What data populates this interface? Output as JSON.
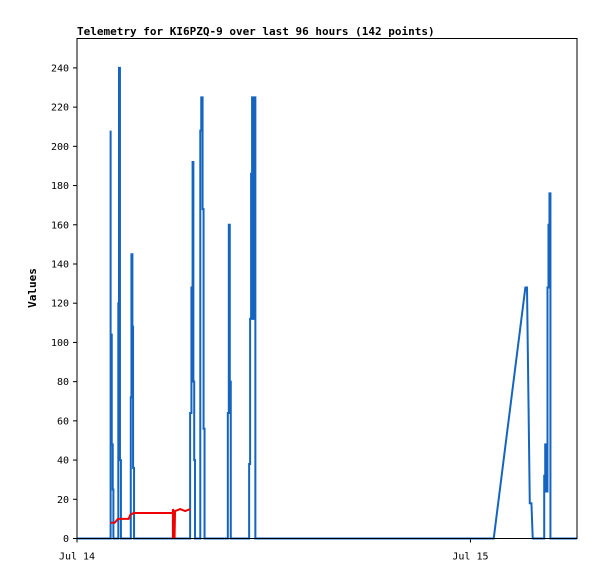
{
  "chart_data": {
    "type": "line",
    "title": "Telemetry for KI6PZQ-9 over last 96 hours (142 points)",
    "xlabel": "",
    "ylabel": "Values",
    "x_unit": "hours",
    "xlim": [
      0,
      30.5
    ],
    "ylim": [
      0,
      255
    ],
    "x_ticks": [
      {
        "x": 0,
        "label": "Jul 14"
      },
      {
        "x": 24,
        "label": "Jul 15"
      }
    ],
    "y_ticks": [
      0,
      20,
      40,
      60,
      80,
      100,
      120,
      140,
      160,
      180,
      200,
      220,
      240
    ],
    "grid": false,
    "legend": "none",
    "series": [
      {
        "color": "#1565c0",
        "points": [
          [
            0,
            0
          ],
          [
            2.05,
            0
          ],
          [
            2.05,
            208
          ],
          [
            2.05,
            104
          ],
          [
            2.12,
            104
          ],
          [
            2.12,
            48
          ],
          [
            2.18,
            48
          ],
          [
            2.18,
            25
          ],
          [
            2.22,
            25
          ],
          [
            2.22,
            0
          ],
          [
            2.52,
            0
          ],
          [
            2.52,
            120
          ],
          [
            2.56,
            120
          ],
          [
            2.56,
            240
          ],
          [
            2.62,
            240
          ],
          [
            2.62,
            40
          ],
          [
            2.68,
            40
          ],
          [
            2.68,
            0
          ],
          [
            3.28,
            0
          ],
          [
            3.28,
            72
          ],
          [
            3.32,
            72
          ],
          [
            3.32,
            145
          ],
          [
            3.38,
            145
          ],
          [
            3.38,
            108
          ],
          [
            3.42,
            108
          ],
          [
            3.42,
            36
          ],
          [
            3.48,
            36
          ],
          [
            3.48,
            0
          ],
          [
            6.9,
            0
          ],
          [
            6.9,
            64
          ],
          [
            6.98,
            64
          ],
          [
            6.98,
            128
          ],
          [
            7.05,
            128
          ],
          [
            7.05,
            192
          ],
          [
            7.1,
            192
          ],
          [
            7.1,
            80
          ],
          [
            7.15,
            80
          ],
          [
            7.15,
            40
          ],
          [
            7.2,
            40
          ],
          [
            7.2,
            0
          ],
          [
            7.52,
            0
          ],
          [
            7.52,
            208
          ],
          [
            7.58,
            208
          ],
          [
            7.58,
            225
          ],
          [
            7.66,
            225
          ],
          [
            7.66,
            168
          ],
          [
            7.72,
            168
          ],
          [
            7.72,
            56
          ],
          [
            7.78,
            56
          ],
          [
            7.78,
            0
          ],
          [
            9.2,
            0
          ],
          [
            9.2,
            64
          ],
          [
            9.26,
            64
          ],
          [
            9.26,
            160
          ],
          [
            9.32,
            160
          ],
          [
            9.32,
            80
          ],
          [
            9.38,
            80
          ],
          [
            9.38,
            0
          ],
          [
            10.5,
            0
          ],
          [
            10.5,
            38
          ],
          [
            10.56,
            38
          ],
          [
            10.56,
            112
          ],
          [
            10.62,
            112
          ],
          [
            10.62,
            186
          ],
          [
            10.68,
            186
          ],
          [
            10.68,
            225
          ],
          [
            10.74,
            225
          ],
          [
            10.74,
            112
          ],
          [
            10.8,
            112
          ],
          [
            10.8,
            225
          ],
          [
            10.88,
            225
          ],
          [
            10.88,
            0
          ],
          [
            25.42,
            0
          ],
          [
            27.35,
            128
          ],
          [
            27.45,
            128
          ],
          [
            27.62,
            18
          ],
          [
            27.72,
            18
          ],
          [
            27.8,
            0
          ],
          [
            28.5,
            0
          ],
          [
            28.5,
            32
          ],
          [
            28.56,
            32
          ],
          [
            28.56,
            48
          ],
          [
            28.62,
            48
          ],
          [
            28.62,
            24
          ],
          [
            28.7,
            24
          ],
          [
            28.7,
            128
          ],
          [
            28.76,
            128
          ],
          [
            28.76,
            160
          ],
          [
            28.82,
            160
          ],
          [
            28.82,
            176
          ],
          [
            28.88,
            176
          ],
          [
            28.88,
            0
          ],
          [
            30.5,
            0
          ]
        ]
      },
      {
        "color": "#ee0000",
        "points": [
          [
            2.05,
            8
          ],
          [
            2.3,
            8
          ],
          [
            2.5,
            10
          ],
          [
            3.15,
            10
          ],
          [
            3.25,
            12
          ],
          [
            3.45,
            13
          ],
          [
            5.85,
            13
          ],
          [
            5.85,
            0
          ],
          [
            5.85,
            15
          ],
          [
            5.9,
            14
          ],
          [
            5.95,
            0
          ],
          [
            5.98,
            14
          ],
          [
            6.3,
            15
          ],
          [
            6.6,
            14
          ],
          [
            6.9,
            15
          ]
        ]
      }
    ]
  }
}
